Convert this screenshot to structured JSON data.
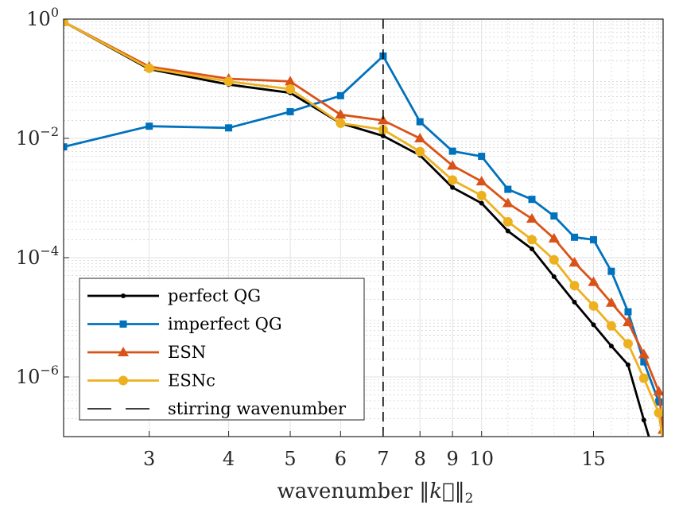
{
  "chart_data": {
    "type": "line",
    "title": "",
    "xlabel_text": "wavenumber ",
    "xlabel_math": "‖k⃗‖",
    "xlabel_sub": "2",
    "x_scale": "log",
    "y_scale": "log",
    "xlim": [
      2.2,
      19.3
    ],
    "ylim": [
      1e-07,
      1
    ],
    "grid": true,
    "minor_grid": true,
    "legend_position": "bottom-left",
    "x_ticks": [
      {
        "value": 3,
        "label": "3"
      },
      {
        "value": 4,
        "label": "4"
      },
      {
        "value": 5,
        "label": "5"
      },
      {
        "value": 6,
        "label": "6"
      },
      {
        "value": 7,
        "label": "7"
      },
      {
        "value": 8,
        "label": "8"
      },
      {
        "value": 9,
        "label": "9"
      },
      {
        "value": 10,
        "label": "10"
      },
      {
        "value": 15,
        "label": "15"
      }
    ],
    "y_ticks": [
      {
        "value": 1,
        "base": "10",
        "exp": "0"
      },
      {
        "value": 0.01,
        "base": "10",
        "exp": "−2"
      },
      {
        "value": 0.0001,
        "base": "10",
        "exp": "−4"
      },
      {
        "value": 1e-06,
        "base": "10",
        "exp": "−6"
      }
    ],
    "series": [
      {
        "name": "perfect QG",
        "color": "#000000",
        "marker": "dot",
        "x": [
          2.2,
          3,
          4,
          5,
          6,
          7,
          8,
          9,
          10,
          11,
          12,
          13,
          14,
          15,
          16,
          17,
          18,
          19
        ],
        "y": [
          0.9,
          0.145,
          0.08,
          0.058,
          0.018,
          0.011,
          0.0052,
          0.0015,
          0.00082,
          0.00028,
          0.00014,
          4.8e-05,
          1.8e-05,
          7.5e-06,
          3.3e-06,
          1.6e-06,
          1.9e-07,
          2.8e-08
        ]
      },
      {
        "name": "imperfect QG",
        "color": "#0072BD",
        "marker": "square",
        "x": [
          2.2,
          3,
          4,
          5,
          6,
          7,
          8,
          9,
          10,
          11,
          12,
          13,
          14,
          15,
          16,
          17,
          18,
          19
        ],
        "y": [
          0.0072,
          0.016,
          0.015,
          0.028,
          0.052,
          0.24,
          0.019,
          0.0061,
          0.005,
          0.0014,
          0.00095,
          0.0005,
          0.00022,
          0.0002,
          5.9e-05,
          1.24e-05,
          1.79e-06,
          3.8e-07
        ]
      },
      {
        "name": "ESN",
        "color": "#D95319",
        "marker": "triangle",
        "x": [
          2.2,
          3,
          4,
          5,
          6,
          7,
          8,
          9,
          10,
          11,
          12,
          13,
          14,
          15,
          16,
          17,
          18,
          19,
          19.3
        ],
        "y": [
          0.9,
          0.16,
          0.1,
          0.09,
          0.025,
          0.02,
          0.01,
          0.0035,
          0.0019,
          0.00082,
          0.00045,
          0.00021,
          8.3e-05,
          3.9e-05,
          1.75e-05,
          8.3e-06,
          2.4e-06,
          5.7e-07,
          1.3e-07
        ]
      },
      {
        "name": "ESNc",
        "color": "#EDB120",
        "marker": "circle",
        "x": [
          2.2,
          3,
          4,
          5,
          6,
          7,
          8,
          9,
          10,
          11,
          12,
          13,
          14,
          15,
          16,
          17,
          18,
          19,
          19.3
        ],
        "y": [
          0.9,
          0.15,
          0.09,
          0.067,
          0.018,
          0.014,
          0.006,
          0.002,
          0.0011,
          0.0004,
          0.0002,
          9.2e-05,
          3.4e-05,
          1.55e-05,
          7.2e-06,
          3.6e-06,
          9.5e-07,
          2.5e-07,
          8e-08
        ]
      },
      {
        "name": "stirring wavenumber",
        "color": "#000000",
        "marker": "none",
        "dashed": true,
        "vertical_at_x": 7
      }
    ]
  }
}
